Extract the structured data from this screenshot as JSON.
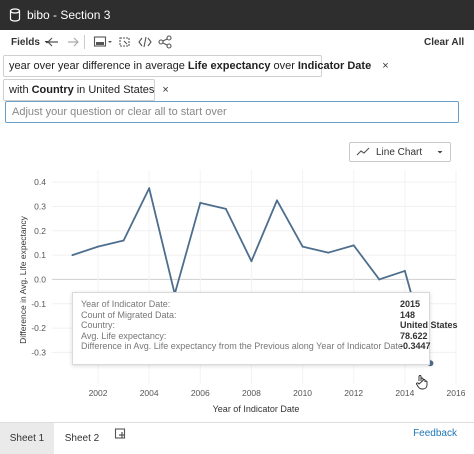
{
  "window": {
    "title": "bibo - Section 3"
  },
  "toolbar": {
    "fields_label": "Fields",
    "clear_all_label": "Clear All"
  },
  "query": {
    "pill1": {
      "pre": "year over year difference in average",
      "bold1": "Life expectancy",
      "mid": "over",
      "bold2": "Indicator Date"
    },
    "pill2": {
      "pre": "with",
      "bold": "Country",
      "post": "in United States"
    },
    "ask_placeholder": "Adjust your question or clear all to start over",
    "close_glyph": "×"
  },
  "chart_type_select": {
    "selected": "Line Chart"
  },
  "chart_data": {
    "type": "line",
    "xlabel": "Year of Indicator Date",
    "ylabel": "Difference in Avg. Life expectancy",
    "xlim": [
      2000.2,
      2016
    ],
    "ylim": [
      -0.43,
      0.45
    ],
    "x_ticks": [
      2002,
      2004,
      2006,
      2008,
      2010,
      2012,
      2014,
      2016
    ],
    "y_ticks": [
      0.4,
      0.3,
      0.2,
      0.1,
      0.0,
      -0.1,
      -0.2,
      -0.3
    ],
    "color": "#4e6e8e",
    "x": [
      2001,
      2002,
      2003,
      2004,
      2005,
      2006,
      2007,
      2008,
      2009,
      2010,
      2011,
      2012,
      2013,
      2014,
      2015
    ],
    "y": [
      0.1,
      0.135,
      0.16,
      0.375,
      -0.06,
      0.315,
      0.29,
      0.075,
      0.325,
      0.135,
      0.11,
      0.14,
      0.0,
      0.035,
      -0.3447
    ],
    "highlight_index": 14
  },
  "tooltip": {
    "rows": [
      {
        "label": "Year of Indicator Date:",
        "value": "2015"
      },
      {
        "label": "Count of Migrated Data:",
        "value": "148"
      },
      {
        "label": "Country:",
        "value": "United States"
      },
      {
        "label": "Avg. Life expectancy:",
        "value": "78.622"
      },
      {
        "label": "Difference in Avg. Life expectancy from the Previous along Year of Indicator Date:",
        "value": "-0.3447"
      }
    ]
  },
  "bottom": {
    "sheet1": "Sheet 1",
    "sheet2": "Sheet 2",
    "feedback": "Feedback"
  }
}
